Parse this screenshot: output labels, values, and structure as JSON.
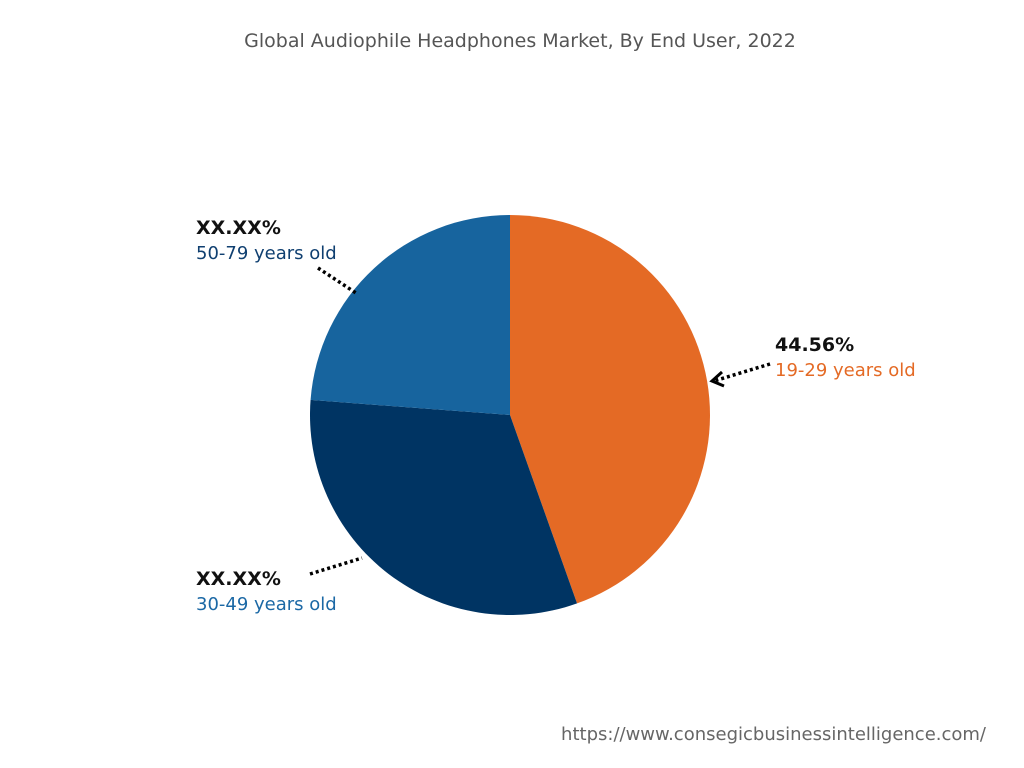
{
  "chart_data": {
    "type": "pie",
    "title": "Global Audiophile Headphones Market, By End User, 2022",
    "slices": [
      {
        "label": "19-29 years old",
        "value": 44.56,
        "display": "44.56%",
        "color": "#E46A25",
        "label_color": "#E46A25"
      },
      {
        "label": "30-49 years old",
        "value": 31.64,
        "display": "XX.XX%",
        "color": "#003463",
        "label_color": "#1B68A5"
      },
      {
        "label": "50-79 years old",
        "value": 23.8,
        "display": "XX.XX%",
        "color": "#17649E",
        "label_color": "#0F3F70"
      }
    ]
  },
  "footer": {
    "url": "https://www.consegicbusinessintelligence.com/"
  }
}
